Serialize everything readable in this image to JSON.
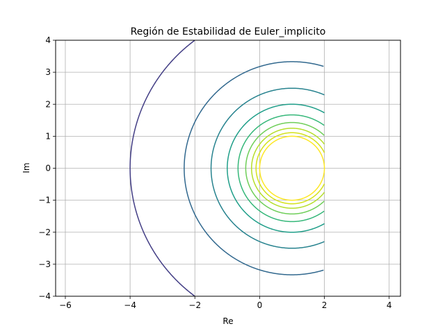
{
  "chart_data": {
    "type": "contour",
    "title": "Región de Estabilidad de Euler_implicito",
    "xlabel": "Re",
    "ylabel": "Im",
    "xlim": [
      -6.3,
      4.35
    ],
    "ylim": [
      -4,
      4
    ],
    "x_ticks": [
      -6,
      -4,
      -2,
      0,
      2,
      4
    ],
    "y_ticks": [
      -4,
      -3,
      -2,
      -1,
      0,
      1,
      2,
      3,
      4
    ],
    "x_tick_labels": [
      "−6",
      "−4",
      "−2",
      "0",
      "2",
      "4"
    ],
    "y_tick_labels": [
      "−4",
      "−3",
      "−2",
      "−1",
      "0",
      "1",
      "2",
      "3",
      "4"
    ],
    "grid": true,
    "domain_x": [
      -4,
      2
    ],
    "domain_y": [
      -4,
      4
    ],
    "center": [
      1,
      0
    ],
    "contours": [
      {
        "radius": 5.0,
        "color": "#433e85"
      },
      {
        "radius": 3.33,
        "color": "#31688e"
      },
      {
        "radius": 2.5,
        "color": "#26828e"
      },
      {
        "radius": 2.0,
        "color": "#1f9e89"
      },
      {
        "radius": 1.667,
        "color": "#35b779"
      },
      {
        "radius": 1.429,
        "color": "#6ece58"
      },
      {
        "radius": 1.25,
        "color": "#b5de2b"
      },
      {
        "radius": 1.111,
        "color": "#d4e21a"
      },
      {
        "radius": 1.0,
        "color": "#fde725"
      }
    ]
  }
}
